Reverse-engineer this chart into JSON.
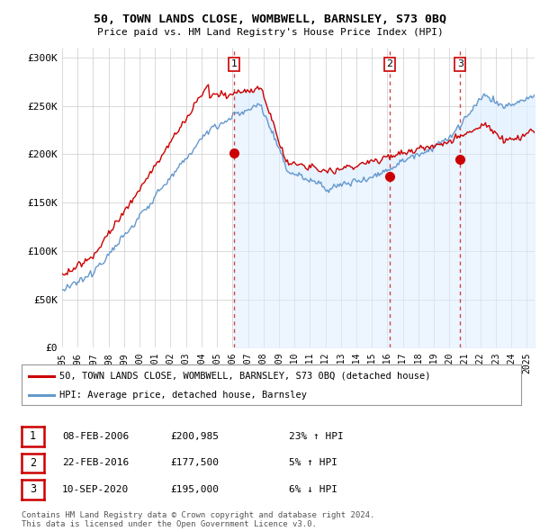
{
  "title": "50, TOWN LANDS CLOSE, WOMBWELL, BARNSLEY, S73 0BQ",
  "subtitle": "Price paid vs. HM Land Registry's House Price Index (HPI)",
  "ylabel_ticks": [
    "£0",
    "£50K",
    "£100K",
    "£150K",
    "£200K",
    "£250K",
    "£300K"
  ],
  "ytick_values": [
    0,
    50000,
    100000,
    150000,
    200000,
    250000,
    300000
  ],
  "ylim": [
    0,
    310000
  ],
  "xlim_start": 1995.0,
  "xlim_end": 2025.5,
  "xtick_years": [
    1995,
    1996,
    1997,
    1998,
    1999,
    2000,
    2001,
    2002,
    2003,
    2004,
    2005,
    2006,
    2007,
    2008,
    2009,
    2010,
    2011,
    2012,
    2013,
    2014,
    2015,
    2016,
    2017,
    2018,
    2019,
    2020,
    2021,
    2022,
    2023,
    2024,
    2025
  ],
  "transaction_dates": [
    2006.1,
    2016.15,
    2020.69
  ],
  "transaction_labels": [
    "1",
    "2",
    "3"
  ],
  "transaction_prices": [
    200985,
    177500,
    195000
  ],
  "hpi_color": "#6699cc",
  "hpi_fill_color": "#ddeeff",
  "property_color": "#cc0000",
  "vline_color": "#cc3333",
  "legend_property_label": "50, TOWN LANDS CLOSE, WOMBWELL, BARNSLEY, S73 0BQ (detached house)",
  "legend_hpi_label": "HPI: Average price, detached house, Barnsley",
  "table_rows": [
    {
      "num": "1",
      "date": "08-FEB-2006",
      "price": "£200,985",
      "change": "23% ↑ HPI"
    },
    {
      "num": "2",
      "date": "22-FEB-2016",
      "price": "£177,500",
      "change": "5% ↑ HPI"
    },
    {
      "num": "3",
      "date": "10-SEP-2020",
      "price": "£195,000",
      "change": "6% ↓ HPI"
    }
  ],
  "footer": "Contains HM Land Registry data © Crown copyright and database right 2024.\nThis data is licensed under the Open Government Licence v3.0.",
  "background_color": "#ffffff",
  "grid_color": "#cccccc",
  "plot_bg": "#ffffff"
}
